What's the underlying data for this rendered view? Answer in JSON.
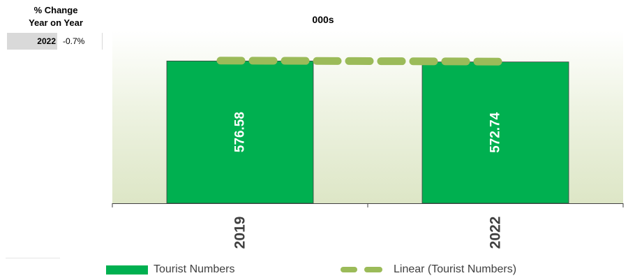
{
  "side_table": {
    "header_line1": "% Change",
    "header_line2": "Year on Year",
    "row": {
      "year_label": "2022",
      "value": "-0.7%"
    }
  },
  "chart_data": {
    "type": "bar",
    "title": "000s",
    "categories": [
      "2019",
      "2022"
    ],
    "series": [
      {
        "name": "Tourist Numbers",
        "values": [
          576.58,
          572.74
        ],
        "color": "#00b050"
      }
    ],
    "trendline": {
      "name": "Linear (Tourist Numbers)",
      "type": "linear",
      "color": "#9bbb59",
      "style": "dashed"
    },
    "data_labels": [
      "576.58",
      "572.74"
    ],
    "plot_background": "vertical gradient, light green-beige",
    "legend_position": "bottom",
    "grid": false
  },
  "legend": {
    "items": [
      {
        "label": "Tourist Numbers"
      },
      {
        "label": "Linear (Tourist Numbers)"
      }
    ]
  }
}
